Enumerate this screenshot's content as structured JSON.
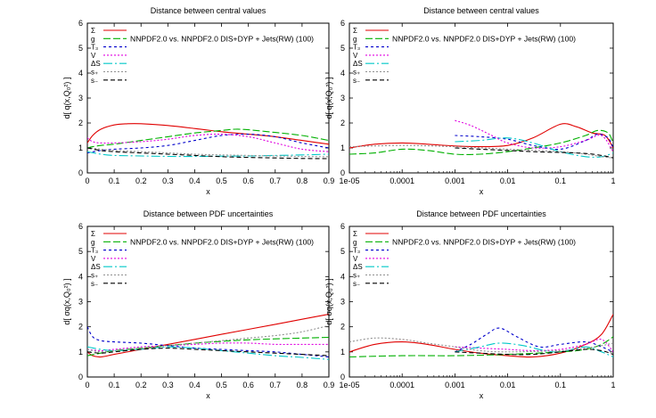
{
  "figure": {
    "note": "2x2 grid of distance plots comparing two NNPDF fits"
  },
  "chart_data": [
    {
      "type": "line",
      "title": "Distance between central values",
      "xlabel": "x",
      "ylabel": "d[ q(x,Q₀²) ]",
      "xscale": "linear",
      "xlim": [
        0,
        0.9
      ],
      "ylim": [
        0,
        6
      ],
      "xticks": [
        "0",
        "0.1",
        "0.2",
        "0.3",
        "0.4",
        "0.5",
        "0.6",
        "0.7",
        "0.8",
        "0.9"
      ],
      "xtick_values": [
        0,
        0.1,
        0.2,
        0.3,
        0.4,
        0.5,
        0.6,
        0.7,
        0.8,
        0.9
      ],
      "yticks": [
        "0",
        "1",
        "2",
        "3",
        "4",
        "5",
        "6"
      ],
      "legend_placement": "top-left",
      "annotation": "NNPDF2.0 vs. NNPDF2.0 DIS+DYP + Jets(RW) (100)",
      "series": [
        {
          "name": "Σ",
          "color": "#e00000",
          "dash": "solid",
          "x": [
            0,
            0.02,
            0.05,
            0.1,
            0.15,
            0.2,
            0.3,
            0.4,
            0.5,
            0.6,
            0.7,
            0.8,
            0.9
          ],
          "y": [
            1.2,
            1.5,
            1.75,
            1.92,
            1.97,
            1.97,
            1.9,
            1.78,
            1.65,
            1.55,
            1.45,
            1.3,
            1.15
          ]
        },
        {
          "name": "g",
          "color": "#00b000",
          "dash": "8,3",
          "x": [
            0,
            0.02,
            0.05,
            0.1,
            0.2,
            0.3,
            0.4,
            0.5,
            0.55,
            0.6,
            0.7,
            0.8,
            0.9
          ],
          "y": [
            1.0,
            1.05,
            1.1,
            1.15,
            1.3,
            1.45,
            1.6,
            1.7,
            1.75,
            1.73,
            1.62,
            1.5,
            1.3
          ]
        },
        {
          "name": "T₃",
          "color": "#0000cc",
          "dash": "3,3",
          "x": [
            0,
            0.05,
            0.1,
            0.2,
            0.3,
            0.4,
            0.5,
            0.6,
            0.7,
            0.8,
            0.9
          ],
          "y": [
            0.8,
            0.9,
            0.95,
            1.0,
            1.1,
            1.3,
            1.5,
            1.55,
            1.45,
            1.2,
            1.0
          ]
        },
        {
          "name": "V",
          "color": "#e000e0",
          "dash": "2,2",
          "x": [
            0,
            0.02,
            0.05,
            0.1,
            0.2,
            0.3,
            0.4,
            0.5,
            0.6,
            0.7,
            0.8,
            0.9
          ],
          "y": [
            1.4,
            1.25,
            1.2,
            1.2,
            1.25,
            1.35,
            1.5,
            1.55,
            1.45,
            1.2,
            0.95,
            0.85
          ]
        },
        {
          "name": "ΔS",
          "color": "#00c8c8",
          "dash": "10,3,2,3",
          "x": [
            0,
            0.05,
            0.1,
            0.2,
            0.3,
            0.4,
            0.5,
            0.6,
            0.7,
            0.8,
            0.9
          ],
          "y": [
            0.85,
            0.75,
            0.7,
            0.68,
            0.66,
            0.66,
            0.67,
            0.68,
            0.7,
            0.72,
            0.75
          ]
        },
        {
          "name": "s₊",
          "color": "#909090",
          "dash": "2,2",
          "x": [
            0,
            0.05,
            0.1,
            0.2,
            0.3,
            0.4,
            0.5,
            0.6,
            0.7,
            0.8,
            0.9
          ],
          "y": [
            1.0,
            0.95,
            0.9,
            0.85,
            0.8,
            0.75,
            0.72,
            0.7,
            0.68,
            0.66,
            0.65
          ]
        },
        {
          "name": "s₋",
          "color": "#000000",
          "dash": "5,3",
          "x": [
            0,
            0.05,
            0.1,
            0.2,
            0.3,
            0.4,
            0.5,
            0.6,
            0.7,
            0.8,
            0.9
          ],
          "y": [
            1.0,
            0.9,
            0.85,
            0.8,
            0.75,
            0.7,
            0.65,
            0.62,
            0.6,
            0.58,
            0.57
          ]
        }
      ]
    },
    {
      "type": "line",
      "title": "Distance between central values",
      "xlabel": "x",
      "ylabel": "d[ q(x,Q₀²) ]",
      "xscale": "log",
      "xlim": [
        1e-05,
        1
      ],
      "ylim": [
        0,
        6
      ],
      "xticks": [
        "1e-05",
        "0.0001",
        "0.001",
        "0.01",
        "0.1",
        "1"
      ],
      "xtick_values": [
        1e-05,
        0.0001,
        0.001,
        0.01,
        0.1,
        1
      ],
      "yticks": [
        "0",
        "1",
        "2",
        "3",
        "4",
        "5",
        "6"
      ],
      "legend_placement": "top-left",
      "annotation": "NNPDF2.0 vs. NNPDF2.0 DIS+DYP + Jets(RW) (100)",
      "series": [
        {
          "name": "Σ",
          "color": "#e00000",
          "dash": "solid",
          "x": [
            1e-05,
            3e-05,
            0.0001,
            0.0003,
            0.001,
            0.003,
            0.01,
            0.03,
            0.1,
            0.2,
            0.4,
            0.7,
            1
          ],
          "y": [
            1.0,
            1.15,
            1.2,
            1.15,
            1.08,
            1.05,
            1.1,
            1.4,
            1.95,
            1.85,
            1.6,
            1.5,
            1.0
          ]
        },
        {
          "name": "g",
          "color": "#00b000",
          "dash": "8,3",
          "x": [
            1e-05,
            3e-05,
            0.0001,
            0.0003,
            0.001,
            0.003,
            0.01,
            0.03,
            0.1,
            0.3,
            0.5,
            0.8,
            1
          ],
          "y": [
            0.75,
            0.8,
            0.95,
            0.9,
            0.75,
            0.75,
            0.85,
            1.0,
            1.2,
            1.5,
            1.7,
            1.6,
            1.2
          ]
        },
        {
          "name": "T₃",
          "color": "#0000cc",
          "dash": "3,3",
          "x": [
            0.001,
            0.003,
            0.01,
            0.03,
            0.1,
            0.3,
            0.5,
            0.8,
            1
          ],
          "y": [
            1.5,
            1.45,
            1.35,
            1.1,
            0.95,
            1.3,
            1.55,
            1.4,
            1.0
          ]
        },
        {
          "name": "V",
          "color": "#e000e0",
          "dash": "2,2",
          "x": [
            0.001,
            0.002,
            0.005,
            0.01,
            0.03,
            0.1,
            0.3,
            0.6,
            1
          ],
          "y": [
            2.1,
            1.9,
            1.5,
            1.2,
            1.0,
            1.05,
            1.3,
            1.5,
            0.85
          ]
        },
        {
          "name": "ΔS",
          "color": "#00c8c8",
          "dash": "10,3,2,3",
          "x": [
            0.001,
            0.003,
            0.01,
            0.03,
            0.1,
            0.3,
            0.6,
            1
          ],
          "y": [
            1.25,
            1.3,
            1.4,
            1.2,
            0.85,
            0.65,
            0.65,
            0.8
          ]
        },
        {
          "name": "s₊",
          "color": "#909090",
          "dash": "2,2",
          "x": [
            1e-05,
            0.0001,
            0.001,
            0.01,
            0.1,
            0.3,
            0.6,
            1
          ],
          "y": [
            1.05,
            1.1,
            1.05,
            0.95,
            0.85,
            0.75,
            0.65,
            0.6
          ]
        },
        {
          "name": "s₋",
          "color": "#000000",
          "dash": "5,3",
          "x": [
            0.001,
            0.003,
            0.01,
            0.03,
            0.1,
            0.3,
            0.6,
            1
          ],
          "y": [
            1.0,
            0.95,
            0.9,
            0.85,
            0.82,
            0.78,
            0.7,
            0.6
          ]
        }
      ]
    },
    {
      "type": "line",
      "title": "Distance between PDF uncertainties",
      "xlabel": "x",
      "ylabel": "d[ σq(x,Q₀²) ]",
      "xscale": "linear",
      "xlim": [
        0,
        0.9
      ],
      "ylim": [
        0,
        6
      ],
      "xticks": [
        "0",
        "0.1",
        "0.2",
        "0.3",
        "0.4",
        "0.5",
        "0.6",
        "0.7",
        "0.8",
        "0.9"
      ],
      "xtick_values": [
        0,
        0.1,
        0.2,
        0.3,
        0.4,
        0.5,
        0.6,
        0.7,
        0.8,
        0.9
      ],
      "yticks": [
        "0",
        "1",
        "2",
        "3",
        "4",
        "5",
        "6"
      ],
      "legend_placement": "top-left",
      "annotation": "NNPDF2.0 vs. NNPDF2.0 DIS+DYP + Jets(RW) (100)",
      "series": [
        {
          "name": "Σ",
          "color": "#e00000",
          "dash": "solid",
          "x": [
            0,
            0.02,
            0.05,
            0.1,
            0.2,
            0.3,
            0.4,
            0.5,
            0.6,
            0.7,
            0.8,
            0.9
          ],
          "y": [
            1.0,
            0.85,
            0.8,
            0.9,
            1.1,
            1.3,
            1.5,
            1.7,
            1.9,
            2.1,
            2.3,
            2.5
          ]
        },
        {
          "name": "g",
          "color": "#00b000",
          "dash": "8,3",
          "x": [
            0,
            0.05,
            0.1,
            0.2,
            0.3,
            0.4,
            0.5,
            0.6,
            0.7,
            0.8,
            0.9
          ],
          "y": [
            0.85,
            0.95,
            1.05,
            1.15,
            1.25,
            1.35,
            1.42,
            1.48,
            1.52,
            1.55,
            1.58
          ]
        },
        {
          "name": "T₃",
          "color": "#0000cc",
          "dash": "3,3",
          "x": [
            0,
            0.02,
            0.05,
            0.1,
            0.2,
            0.3,
            0.4,
            0.5,
            0.6,
            0.7,
            0.8,
            0.9
          ],
          "y": [
            2.0,
            1.6,
            1.45,
            1.4,
            1.35,
            1.25,
            1.15,
            1.1,
            1.05,
            1.0,
            0.9,
            0.8
          ]
        },
        {
          "name": "V",
          "color": "#e000e0",
          "dash": "2,2",
          "x": [
            0,
            0.05,
            0.1,
            0.2,
            0.3,
            0.4,
            0.5,
            0.6,
            0.7,
            0.8,
            0.9
          ],
          "y": [
            1.1,
            1.05,
            1.1,
            1.2,
            1.25,
            1.3,
            1.35,
            1.35,
            1.3,
            1.3,
            1.3
          ]
        },
        {
          "name": "ΔS",
          "color": "#00c8c8",
          "dash": "10,3,2,3",
          "x": [
            0,
            0.05,
            0.1,
            0.2,
            0.3,
            0.4,
            0.5,
            0.6,
            0.7,
            0.8,
            0.9
          ],
          "y": [
            1.2,
            1.1,
            1.05,
            1.1,
            1.2,
            1.15,
            1.05,
            0.95,
            0.85,
            0.78,
            0.7
          ]
        },
        {
          "name": "s₊",
          "color": "#909090",
          "dash": "2,2",
          "x": [
            0,
            0.05,
            0.1,
            0.2,
            0.3,
            0.4,
            0.5,
            0.6,
            0.7,
            0.8,
            0.9
          ],
          "y": [
            1.1,
            1.0,
            1.05,
            1.15,
            1.25,
            1.35,
            1.45,
            1.55,
            1.65,
            1.8,
            2.05
          ]
        },
        {
          "name": "s₋",
          "color": "#000000",
          "dash": "5,3",
          "x": [
            0,
            0.05,
            0.1,
            0.2,
            0.3,
            0.4,
            0.5,
            0.6,
            0.7,
            0.8,
            0.9
          ],
          "y": [
            1.0,
            0.95,
            1.0,
            1.1,
            1.15,
            1.1,
            1.05,
            1.0,
            0.95,
            0.9,
            0.85
          ]
        }
      ]
    },
    {
      "type": "line",
      "title": "Distance between PDF uncertainties",
      "xlabel": "x",
      "ylabel": "d[ σq(x,Q₀²) ]",
      "xscale": "log",
      "xlim": [
        1e-05,
        1
      ],
      "ylim": [
        0,
        6
      ],
      "xticks": [
        "1e-05",
        "0.0001",
        "0.001",
        "0.01",
        "0.1",
        "1"
      ],
      "xtick_values": [
        1e-05,
        0.0001,
        0.001,
        0.01,
        0.1,
        1
      ],
      "yticks": [
        "0",
        "1",
        "2",
        "3",
        "4",
        "5",
        "6"
      ],
      "legend_placement": "top-left",
      "annotation": "NNPDF2.0 vs. NNPDF2.0 DIS+DYP + Jets(RW) (100)",
      "series": [
        {
          "name": "Σ",
          "color": "#e00000",
          "dash": "solid",
          "x": [
            1e-05,
            3e-05,
            0.0001,
            0.0003,
            0.001,
            0.003,
            0.01,
            0.03,
            0.1,
            0.3,
            0.6,
            1
          ],
          "y": [
            1.0,
            1.3,
            1.4,
            1.3,
            1.1,
            0.95,
            0.85,
            0.8,
            0.95,
            1.3,
            1.7,
            2.5
          ]
        },
        {
          "name": "g",
          "color": "#00b000",
          "dash": "8,3",
          "x": [
            1e-05,
            0.0001,
            0.001,
            0.01,
            0.1,
            0.3,
            0.6,
            1
          ],
          "y": [
            0.8,
            0.85,
            0.85,
            0.9,
            1.0,
            1.1,
            1.3,
            1.6
          ]
        },
        {
          "name": "T₃",
          "color": "#0000cc",
          "dash": "3,3",
          "x": [
            0.001,
            0.002,
            0.004,
            0.007,
            0.015,
            0.04,
            0.1,
            0.3,
            0.6,
            1
          ],
          "y": [
            1.0,
            1.3,
            1.7,
            1.95,
            1.6,
            1.2,
            1.3,
            1.4,
            1.2,
            1.0
          ]
        },
        {
          "name": "V",
          "color": "#e000e0",
          "dash": "2,2",
          "x": [
            0.001,
            0.003,
            0.01,
            0.03,
            0.1,
            0.3,
            0.6,
            1
          ],
          "y": [
            1.2,
            1.15,
            1.1,
            1.05,
            1.1,
            1.3,
            1.5,
            1.0
          ]
        },
        {
          "name": "ΔS",
          "color": "#00c8c8",
          "dash": "10,3,2,3",
          "x": [
            0.001,
            0.003,
            0.007,
            0.02,
            0.05,
            0.1,
            0.3,
            0.6,
            1
          ],
          "y": [
            1.0,
            1.2,
            1.35,
            1.25,
            1.05,
            1.0,
            1.2,
            1.0,
            0.8
          ]
        },
        {
          "name": "s₊",
          "color": "#909090",
          "dash": "2,2",
          "x": [
            1e-05,
            3e-05,
            0.0001,
            0.0003,
            0.001,
            0.003,
            0.01,
            0.1,
            0.3,
            0.6,
            1
          ],
          "y": [
            1.4,
            1.55,
            1.5,
            1.35,
            1.2,
            1.05,
            1.0,
            1.05,
            1.15,
            1.25,
            1.35
          ]
        },
        {
          "name": "s₋",
          "color": "#000000",
          "dash": "5,3",
          "x": [
            0.001,
            0.003,
            0.01,
            0.03,
            0.1,
            0.3,
            0.6,
            1
          ],
          "y": [
            1.0,
            0.95,
            0.9,
            0.9,
            1.0,
            1.1,
            1.05,
            0.9
          ]
        }
      ]
    }
  ]
}
